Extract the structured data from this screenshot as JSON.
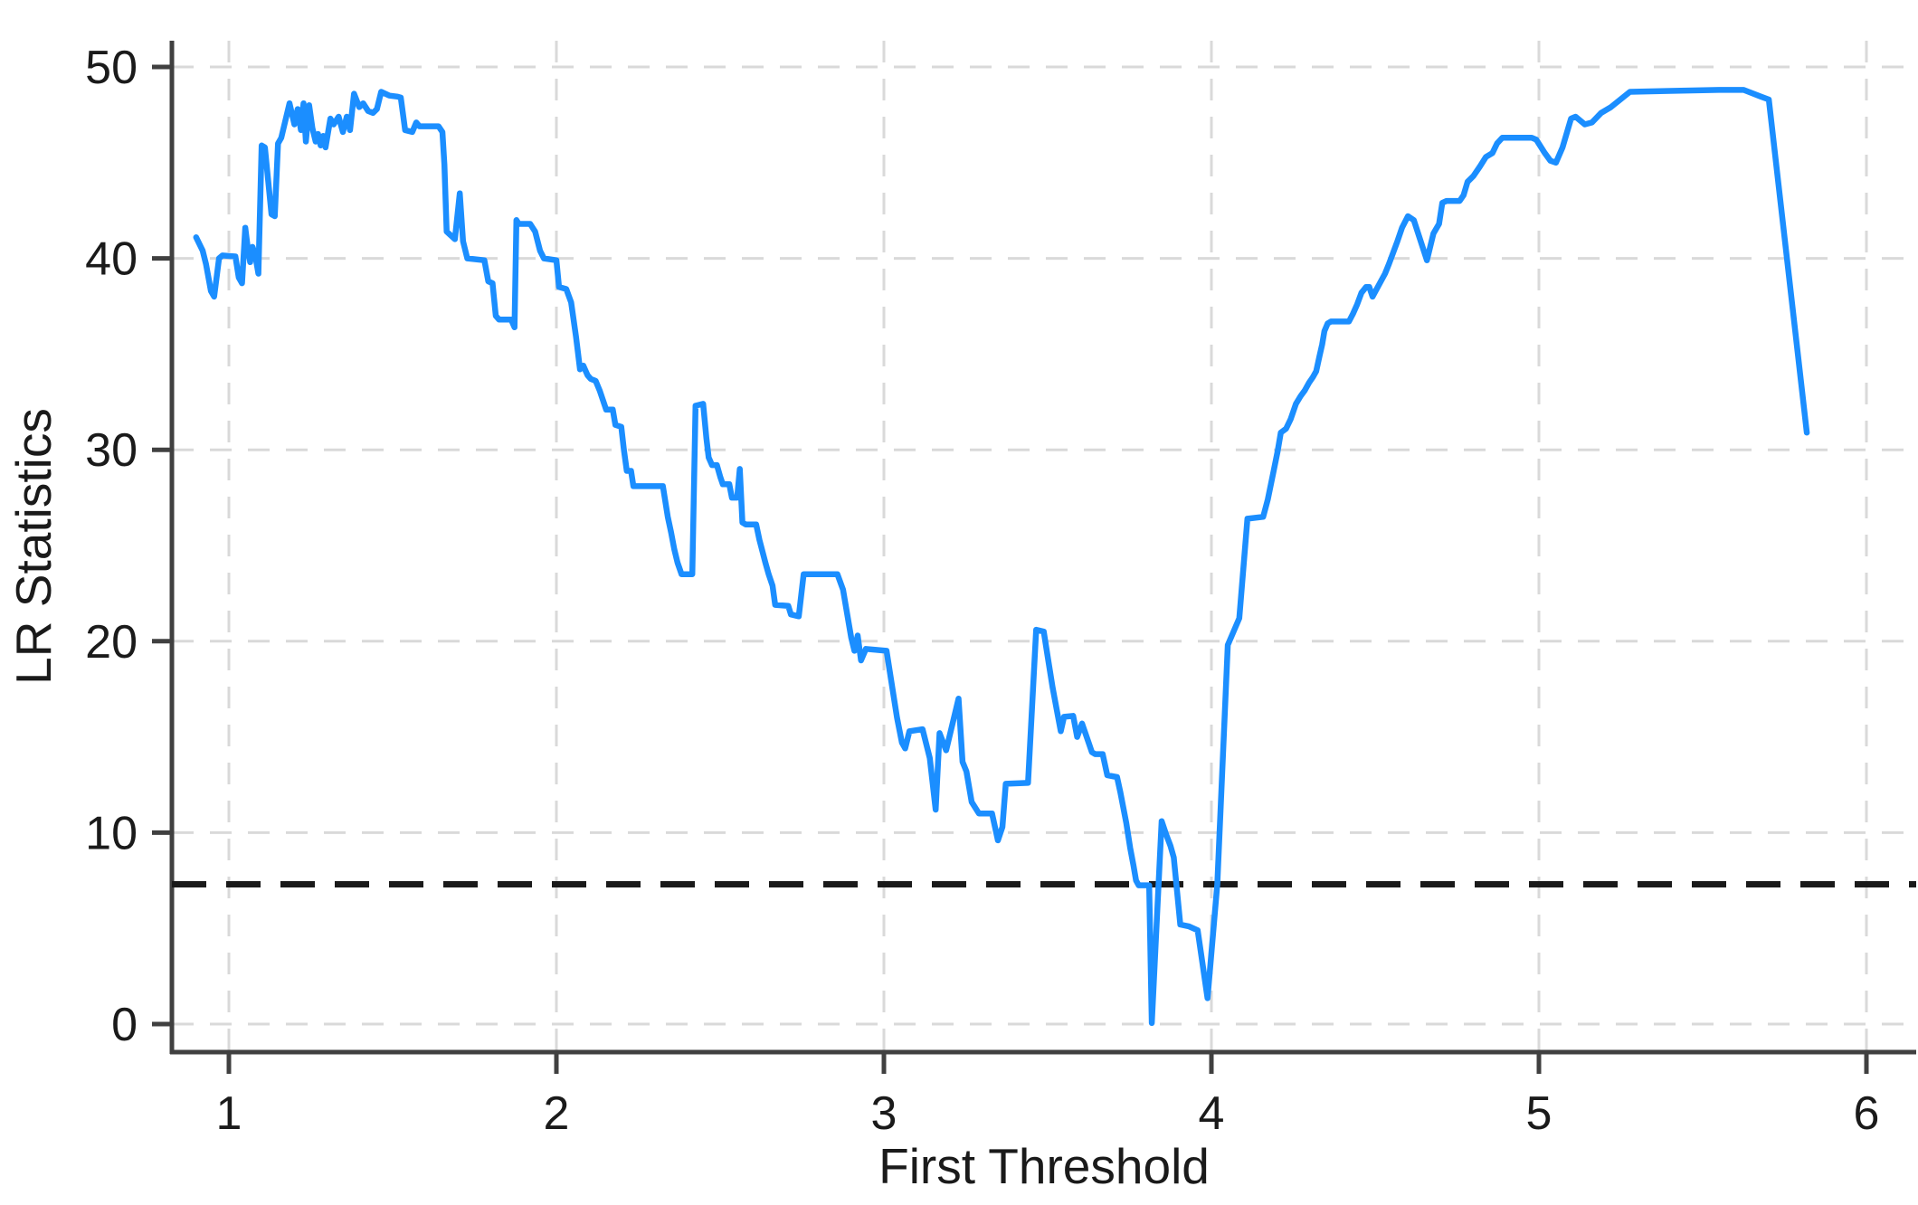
{
  "figure": {
    "background": "#ffffff"
  },
  "chart_data": {
    "type": "line",
    "title": "",
    "xlabel": "First Threshold",
    "ylabel": "LR Statistics",
    "xlim": [
      0.83,
      6.16
    ],
    "ylim": [
      -1.5,
      53.5
    ],
    "x_ticks": [
      1,
      2,
      3,
      4,
      5,
      6
    ],
    "y_ticks": [
      0,
      10,
      20,
      30,
      40,
      50
    ],
    "grid": {
      "visible": true,
      "style": "dashed",
      "color": "#d9d9d9"
    },
    "legend_position": "none",
    "axis_color": "#404040",
    "reference_line": {
      "y": 7.3,
      "style": "dashed",
      "color": "#1a1a1a",
      "meaning": "critical value"
    },
    "series": [
      {
        "name": "LR statistic",
        "color": "#1b8eff",
        "points": [
          [
            0.9,
            41.1
          ],
          [
            0.92,
            40.4
          ],
          [
            0.93,
            39.7
          ],
          [
            0.945,
            38.3
          ],
          [
            0.955,
            38.0
          ],
          [
            0.97,
            40.0
          ],
          [
            0.98,
            40.15
          ],
          [
            1.02,
            40.1
          ],
          [
            1.03,
            39.0
          ],
          [
            1.04,
            38.7
          ],
          [
            1.05,
            41.6
          ],
          [
            1.058,
            40.5
          ],
          [
            1.065,
            39.8
          ],
          [
            1.072,
            40.6
          ],
          [
            1.08,
            40.2
          ],
          [
            1.09,
            39.2
          ],
          [
            1.1,
            45.9
          ],
          [
            1.11,
            45.8
          ],
          [
            1.13,
            42.3
          ],
          [
            1.14,
            42.2
          ],
          [
            1.15,
            46.0
          ],
          [
            1.16,
            46.3
          ],
          [
            1.185,
            48.1
          ],
          [
            1.2,
            47.0
          ],
          [
            1.21,
            47.8
          ],
          [
            1.22,
            46.7
          ],
          [
            1.228,
            48.1
          ],
          [
            1.235,
            46.1
          ],
          [
            1.245,
            48.0
          ],
          [
            1.255,
            46.8
          ],
          [
            1.265,
            46.1
          ],
          [
            1.272,
            46.5
          ],
          [
            1.28,
            45.9
          ],
          [
            1.288,
            46.4
          ],
          [
            1.295,
            45.8
          ],
          [
            1.31,
            47.3
          ],
          [
            1.32,
            47.0
          ],
          [
            1.335,
            47.4
          ],
          [
            1.348,
            46.6
          ],
          [
            1.36,
            47.4
          ],
          [
            1.37,
            46.7
          ],
          [
            1.382,
            48.6
          ],
          [
            1.398,
            47.9
          ],
          [
            1.41,
            48.1
          ],
          [
            1.425,
            47.7
          ],
          [
            1.44,
            47.6
          ],
          [
            1.452,
            47.8
          ],
          [
            1.465,
            48.7
          ],
          [
            1.49,
            48.5
          ],
          [
            1.515,
            48.45
          ],
          [
            1.525,
            48.4
          ],
          [
            1.538,
            46.7
          ],
          [
            1.56,
            46.6
          ],
          [
            1.572,
            47.1
          ],
          [
            1.582,
            46.9
          ],
          [
            1.64,
            46.9
          ],
          [
            1.652,
            46.6
          ],
          [
            1.658,
            44.9
          ],
          [
            1.665,
            41.4
          ],
          [
            1.69,
            41.0
          ],
          [
            1.705,
            43.4
          ],
          [
            1.715,
            40.9
          ],
          [
            1.728,
            40.0
          ],
          [
            1.78,
            39.9
          ],
          [
            1.792,
            38.8
          ],
          [
            1.805,
            38.7
          ],
          [
            1.815,
            37.0
          ],
          [
            1.825,
            36.8
          ],
          [
            1.862,
            36.8
          ],
          [
            1.872,
            36.4
          ],
          [
            1.878,
            42.0
          ],
          [
            1.885,
            41.8
          ],
          [
            1.92,
            41.8
          ],
          [
            1.935,
            41.4
          ],
          [
            1.95,
            40.4
          ],
          [
            1.962,
            40.0
          ],
          [
            2.0,
            39.9
          ],
          [
            2.008,
            38.5
          ],
          [
            2.03,
            38.4
          ],
          [
            2.045,
            37.7
          ],
          [
            2.06,
            35.9
          ],
          [
            2.072,
            34.2
          ],
          [
            2.082,
            34.4
          ],
          [
            2.095,
            33.9
          ],
          [
            2.105,
            33.7
          ],
          [
            2.12,
            33.6
          ],
          [
            2.132,
            33.1
          ],
          [
            2.142,
            32.6
          ],
          [
            2.152,
            32.1
          ],
          [
            2.172,
            32.1
          ],
          [
            2.18,
            31.3
          ],
          [
            2.198,
            31.2
          ],
          [
            2.206,
            30.0
          ],
          [
            2.215,
            28.9
          ],
          [
            2.228,
            28.9
          ],
          [
            2.235,
            28.1
          ],
          [
            2.325,
            28.1
          ],
          [
            2.34,
            26.5
          ],
          [
            2.35,
            25.7
          ],
          [
            2.36,
            24.8
          ],
          [
            2.37,
            24.1
          ],
          [
            2.382,
            23.5
          ],
          [
            2.415,
            23.5
          ],
          [
            2.425,
            32.3
          ],
          [
            2.448,
            32.4
          ],
          [
            2.458,
            30.6
          ],
          [
            2.465,
            29.6
          ],
          [
            2.475,
            29.2
          ],
          [
            2.49,
            29.2
          ],
          [
            2.5,
            28.6
          ],
          [
            2.508,
            28.2
          ],
          [
            2.528,
            28.2
          ],
          [
            2.536,
            27.5
          ],
          [
            2.552,
            27.5
          ],
          [
            2.56,
            29.0
          ],
          [
            2.568,
            26.2
          ],
          [
            2.578,
            26.1
          ],
          [
            2.61,
            26.1
          ],
          [
            2.62,
            25.3
          ],
          [
            2.638,
            24.1
          ],
          [
            2.648,
            23.5
          ],
          [
            2.66,
            22.9
          ],
          [
            2.668,
            21.9
          ],
          [
            2.708,
            21.85
          ],
          [
            2.716,
            21.4
          ],
          [
            2.74,
            21.3
          ],
          [
            2.755,
            23.5
          ],
          [
            2.858,
            23.5
          ],
          [
            2.875,
            22.7
          ],
          [
            2.89,
            21.2
          ],
          [
            2.9,
            20.2
          ],
          [
            2.91,
            19.5
          ],
          [
            2.92,
            20.3
          ],
          [
            2.93,
            19.0
          ],
          [
            2.945,
            19.6
          ],
          [
            3.008,
            19.5
          ],
          [
            3.04,
            16.0
          ],
          [
            3.055,
            14.7
          ],
          [
            3.065,
            14.4
          ],
          [
            3.078,
            15.3
          ],
          [
            3.118,
            15.4
          ],
          [
            3.14,
            13.9
          ],
          [
            3.158,
            11.2
          ],
          [
            3.17,
            15.2
          ],
          [
            3.19,
            14.3
          ],
          [
            3.228,
            17.0
          ],
          [
            3.24,
            13.7
          ],
          [
            3.252,
            13.2
          ],
          [
            3.268,
            11.6
          ],
          [
            3.29,
            11.0
          ],
          [
            3.33,
            11.0
          ],
          [
            3.348,
            9.6
          ],
          [
            3.362,
            10.3
          ],
          [
            3.372,
            12.55
          ],
          [
            3.44,
            12.6
          ],
          [
            3.465,
            20.6
          ],
          [
            3.488,
            20.5
          ],
          [
            3.5,
            19.2
          ],
          [
            3.515,
            17.6
          ],
          [
            3.53,
            16.2
          ],
          [
            3.54,
            15.3
          ],
          [
            3.55,
            16.05
          ],
          [
            3.578,
            16.1
          ],
          [
            3.59,
            15.0
          ],
          [
            3.605,
            15.7
          ],
          [
            3.625,
            14.7
          ],
          [
            3.635,
            14.2
          ],
          [
            3.645,
            14.1
          ],
          [
            3.668,
            14.1
          ],
          [
            3.682,
            13.0
          ],
          [
            3.712,
            12.9
          ],
          [
            3.722,
            12.1
          ],
          [
            3.74,
            10.5
          ],
          [
            3.752,
            9.2
          ],
          [
            3.762,
            8.3
          ],
          [
            3.77,
            7.5
          ],
          [
            3.778,
            7.25
          ],
          [
            3.81,
            7.25
          ],
          [
            3.818,
            0.05
          ],
          [
            3.848,
            10.6
          ],
          [
            3.862,
            9.9
          ],
          [
            3.875,
            9.3
          ],
          [
            3.885,
            8.7
          ],
          [
            3.905,
            5.2
          ],
          [
            3.932,
            5.1
          ],
          [
            3.958,
            4.9
          ],
          [
            3.988,
            1.35
          ],
          [
            4.018,
            7.3
          ],
          [
            4.05,
            19.8
          ],
          [
            4.085,
            21.2
          ],
          [
            4.11,
            26.4
          ],
          [
            4.158,
            26.5
          ],
          [
            4.172,
            27.4
          ],
          [
            4.19,
            28.9
          ],
          [
            4.202,
            29.9
          ],
          [
            4.212,
            30.9
          ],
          [
            4.228,
            31.1
          ],
          [
            4.242,
            31.6
          ],
          [
            4.258,
            32.4
          ],
          [
            4.272,
            32.8
          ],
          [
            4.285,
            33.1
          ],
          [
            4.298,
            33.5
          ],
          [
            4.31,
            33.8
          ],
          [
            4.32,
            34.1
          ],
          [
            4.33,
            34.9
          ],
          [
            4.338,
            35.5
          ],
          [
            4.345,
            36.2
          ],
          [
            4.355,
            36.6
          ],
          [
            4.365,
            36.7
          ],
          [
            4.42,
            36.7
          ],
          [
            4.432,
            37.1
          ],
          [
            4.445,
            37.6
          ],
          [
            4.458,
            38.2
          ],
          [
            4.472,
            38.5
          ],
          [
            4.482,
            38.5
          ],
          [
            4.492,
            38.0
          ],
          [
            4.53,
            39.2
          ],
          [
            4.542,
            39.7
          ],
          [
            4.555,
            40.3
          ],
          [
            4.568,
            40.9
          ],
          [
            4.582,
            41.6
          ],
          [
            4.6,
            42.2
          ],
          [
            4.618,
            42.0
          ],
          [
            4.658,
            39.9
          ],
          [
            4.678,
            41.3
          ],
          [
            4.695,
            41.8
          ],
          [
            4.705,
            42.9
          ],
          [
            4.718,
            43.0
          ],
          [
            4.758,
            43.0
          ],
          [
            4.77,
            43.3
          ],
          [
            4.782,
            44.0
          ],
          [
            4.8,
            44.3
          ],
          [
            4.82,
            44.8
          ],
          [
            4.838,
            45.3
          ],
          [
            4.858,
            45.5
          ],
          [
            4.872,
            46.0
          ],
          [
            4.888,
            46.3
          ],
          [
            4.978,
            46.3
          ],
          [
            4.992,
            46.2
          ],
          [
            5.018,
            45.5
          ],
          [
            5.035,
            45.1
          ],
          [
            5.052,
            45.0
          ],
          [
            5.072,
            45.8
          ],
          [
            5.098,
            47.3
          ],
          [
            5.112,
            47.4
          ],
          [
            5.14,
            47.0
          ],
          [
            5.162,
            47.1
          ],
          [
            5.19,
            47.6
          ],
          [
            5.22,
            47.9
          ],
          [
            5.278,
            48.7
          ],
          [
            5.4,
            48.75
          ],
          [
            5.55,
            48.8
          ],
          [
            5.625,
            48.8
          ],
          [
            5.678,
            48.45
          ],
          [
            5.702,
            48.3
          ],
          [
            5.818,
            30.9
          ]
        ]
      }
    ]
  }
}
